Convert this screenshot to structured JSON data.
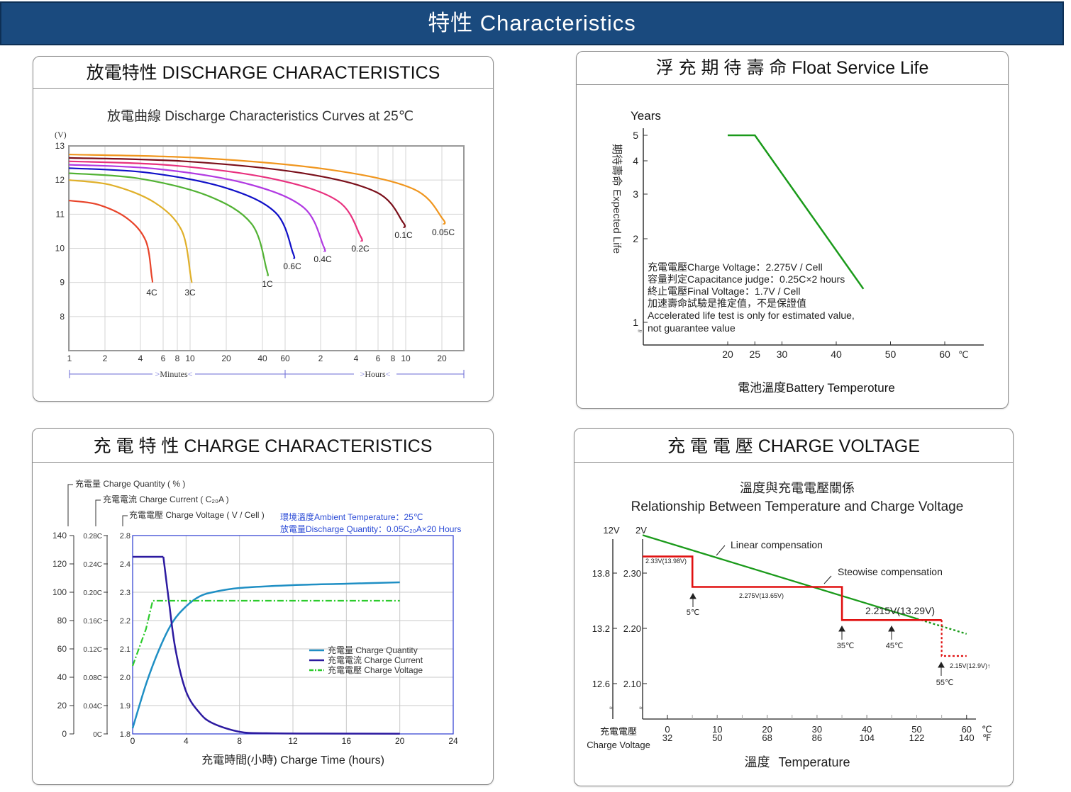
{
  "banner": {
    "title": "特性  Characteristics"
  },
  "colors": {
    "banner_bg": "#1a4a7e",
    "discharge_series": [
      "#e8442a",
      "#e0b02a",
      "#52b234",
      "#1010c8",
      "#b13ae2",
      "#e8307e",
      "#7a0f1a",
      "#f0961e"
    ],
    "float_line": "#1a9a1a",
    "charge_quantity": "#1f8fc4",
    "charge_current": "#2c1aa0",
    "charge_voltage": "#2ccb2c",
    "linear_comp": "#1a9a1a",
    "stepwise_comp": "#e01010"
  },
  "panels": {
    "discharge": {
      "header": "放電特性 DISCHARGE CHARACTERISTICS",
      "chart_title": "放電曲線 Discharge Characteristics Curves at 25℃",
      "y_unit": "(V)",
      "y_ticks": [
        "13",
        "12",
        "11",
        "10",
        "9",
        "8"
      ],
      "x_ticks_minutes": [
        "1",
        "2",
        "4",
        "6",
        "8",
        "10",
        "20",
        "40",
        "60"
      ],
      "x_ticks_hours": [
        "2",
        "4",
        "6",
        "8",
        "10",
        "20"
      ],
      "x_label_minutes": "Minutes",
      "x_label_hours": "Hours"
    },
    "float_life": {
      "header": "浮 充 期 待 壽 命 Float Service Life",
      "y_title": "Years",
      "y_side_label": "期待壽命 Expected Life",
      "y_ticks": [
        "5",
        "4",
        "3",
        "2",
        "1"
      ],
      "x_ticks": [
        "20",
        "25",
        "30",
        "40",
        "50",
        "60"
      ],
      "x_unit": "℃",
      "x_label": "電池溫度Battery Temperoture",
      "notes": [
        "充電電壓Charge Voltage：2.275V / Cell",
        "容量判定Capacitance judge：0.25C×2 hours",
        "終止電壓Final Voltage：1.7V / Cell",
        "加速壽命試驗是推定值，不是保證值",
        "Accelerated life test is only for estimated value,",
        " not guarantee value"
      ]
    },
    "charge": {
      "header": "充 電 特 性  CHARGE CHARACTERISTICS",
      "axis_label_quantity": "充電量  Charge Quantity ( % )",
      "axis_label_current": "充電電流  Charge Current ( C₂₀A )",
      "axis_label_voltage": "充電電壓  Charge Voltage ( V / Cell )",
      "ambient_note": "環境溫度Ambient Temperature：25℃",
      "discharge_note": "放電量Discharge Quantity：0.05C₂₀A×20 Hours",
      "y_ticks_quantity": [
        "140",
        "120",
        "100",
        "80",
        "60",
        "40",
        "20",
        "0"
      ],
      "y_ticks_current": [
        "0.28C",
        "0.24C",
        "0.20C",
        "0.16C",
        "0.12C",
        "0.08C",
        "0.04C",
        "0C"
      ],
      "y_ticks_voltage": [
        "2.8",
        "2.4",
        "2.3",
        "2.2",
        "2.1",
        "2.0",
        "1.9",
        "1.8"
      ],
      "x_ticks": [
        "0",
        "4",
        "8",
        "12",
        "16",
        "20",
        "24"
      ],
      "x_label": "充電時間(小時)  Charge Time (hours)",
      "legend": [
        {
          "label": "充電量     Charge Quantity"
        },
        {
          "label": "充電電流 Charge Current"
        },
        {
          "label": "充電電壓 Charge Voltage"
        }
      ]
    },
    "charge_voltage": {
      "header": "充 電 電 壓  CHARGE VOLTAGE",
      "title_cn": "溫度與充電電壓關係",
      "title_en": "Relationship Between Temperature and Charge Voltage",
      "y_head_12v": "12V",
      "y_head_2v": "2V",
      "y_ticks_12v": [
        "13.8",
        "13.2",
        "12.6"
      ],
      "y_ticks_2v": [
        "2.30",
        "2.20",
        "2.10"
      ],
      "x_ticks_c": [
        "0",
        "10",
        "20",
        "30",
        "40",
        "50",
        "60"
      ],
      "x_ticks_f": [
        "32",
        "50",
        "68",
        "86",
        "104",
        "122",
        "140"
      ],
      "x_unit_c": "℃",
      "x_unit_f": "℉",
      "x_axis_cn": "充電電壓",
      "x_axis_en": "Charge Voltage",
      "x_label_cn": "溫度",
      "x_label_en": "Temperature",
      "linear_label": "Linear compensation",
      "stepwise_label": "Steowise compensation",
      "annotations": {
        "v233": "2.33V(13.98V)",
        "v2275": "2.275V(13.65V)",
        "v2215": "2.215V(13.29V)",
        "v215": "2.15V(12.9V)↑",
        "t5": "5℃",
        "t35": "35℃",
        "t45": "45℃",
        "t55": "55℃"
      }
    }
  },
  "chart_data": [
    {
      "type": "line",
      "title": "放電曲線 Discharge Characteristics Curves at 25℃",
      "ylabel": "(V)",
      "ylim": [
        7,
        13
      ],
      "x_note": "log time axis from 1 minute to 20+ hours",
      "series": [
        {
          "name": "4C",
          "end_x_label": "≈5 min",
          "start_v": 11.4,
          "end_v": 9.0
        },
        {
          "name": "3C",
          "end_x_label": "≈10 min",
          "start_v": 12.0,
          "end_v": 9.0
        },
        {
          "name": "1C",
          "end_x_label": "≈45 min",
          "start_v": 12.2,
          "end_v": 9.2
        },
        {
          "name": "0.6C",
          "end_x_label": "≈1.3 h",
          "start_v": 12.35,
          "end_v": 9.7
        },
        {
          "name": "0.4C",
          "end_x_label": "≈2 h",
          "start_v": 12.45,
          "end_v": 9.9
        },
        {
          "name": "0.2C",
          "end_x_label": "≈4 h",
          "start_v": 12.55,
          "end_v": 10.2
        },
        {
          "name": "0.1C",
          "end_x_label": "≈9 h",
          "start_v": 12.65,
          "end_v": 10.6
        },
        {
          "name": "0.05C",
          "end_x_label": "≈20 h",
          "start_v": 12.75,
          "end_v": 10.7
        }
      ]
    },
    {
      "type": "line",
      "title": "浮 充 期 待 壽 命 Float Service Life",
      "xlabel": "電池溫度Battery Temperoture",
      "ylabel": "Years",
      "x": [
        20,
        25,
        45
      ],
      "y": [
        5,
        5,
        1.4
      ]
    },
    {
      "type": "line",
      "title": "充 電 特 性  CHARGE CHARACTERISTICS",
      "xlabel": "充電時間(小時)  Charge Time (hours)",
      "xlim": [
        0,
        24
      ],
      "series": [
        {
          "name": "充電量 Charge Quantity (%)",
          "x": [
            0,
            1,
            2,
            3,
            4,
            5,
            6,
            8,
            12,
            16,
            20
          ],
          "y": [
            4,
            35,
            60,
            79,
            90,
            97,
            100,
            103,
            105,
            106,
            107
          ]
        },
        {
          "name": "充電電流 Charge Current (C₂₀A)",
          "x": [
            0,
            2.3,
            2.7,
            3.2,
            4,
            5,
            6,
            8,
            10,
            14,
            20
          ],
          "y": [
            0.25,
            0.25,
            0.19,
            0.12,
            0.06,
            0.03,
            0.015,
            0.003,
            0.001,
            0.0005,
            0.0003
          ]
        },
        {
          "name": "充電電壓 Charge Voltage (V/Cell)",
          "x": [
            0,
            1,
            1.5,
            20
          ],
          "y": [
            2.04,
            2.17,
            2.27,
            2.27
          ]
        }
      ]
    },
    {
      "type": "line",
      "title": "溫度與充電電壓關係 Relationship Between Temperature and Charge Voltage",
      "xlabel": "溫度 Temperature (℃)",
      "ylabel": "2V / 12V",
      "series": [
        {
          "name": "Linear compensation",
          "x": [
            0,
            60
          ],
          "y": [
            2.355,
            2.19
          ]
        },
        {
          "name": "Steowise compensation",
          "x": [
            0,
            5,
            5,
            35,
            35,
            55
          ],
          "y": [
            2.33,
            2.33,
            2.275,
            2.275,
            2.215,
            2.215
          ]
        }
      ]
    }
  ]
}
